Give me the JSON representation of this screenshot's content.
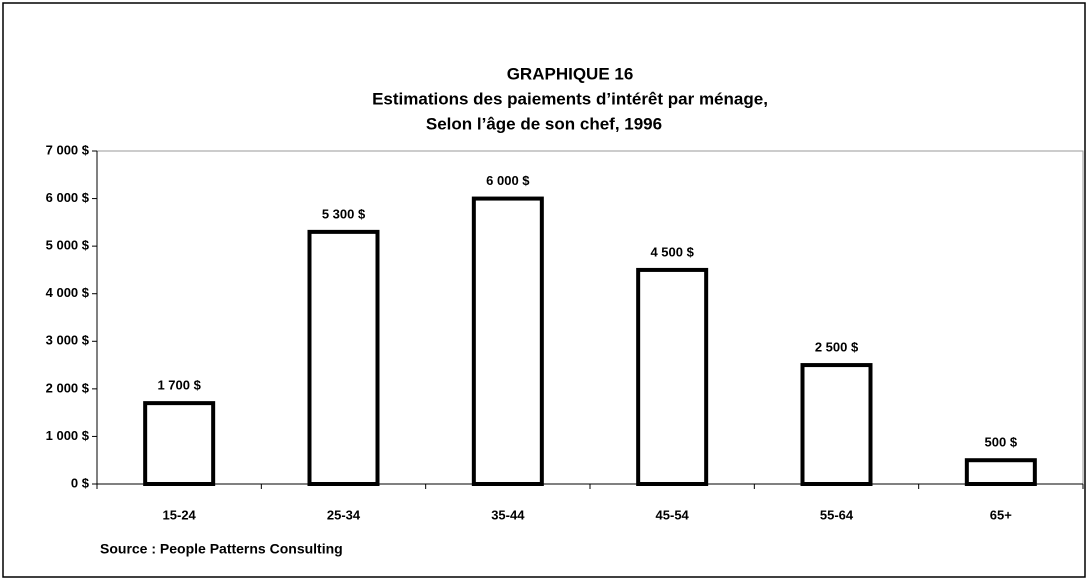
{
  "chart_data": {
    "type": "bar",
    "title": [
      "GRAPHIQUE 16",
      "Estimations des paiements d’intérêt par ménage,",
      "Selon l’âge de son chef, 1996"
    ],
    "categories": [
      "15-24",
      "25-34",
      "35-44",
      "45-54",
      "55-64",
      "65+"
    ],
    "values": [
      1700,
      5300,
      6000,
      4500,
      2500,
      500
    ],
    "value_labels": [
      "1 700 $",
      "5 300 $",
      "6 000 $",
      "4 500 $",
      "2 500 $",
      "500 $"
    ],
    "color": "#ffffff",
    "ylim": [
      0,
      7000
    ],
    "yticks": [
      {
        "value": 0,
        "label": "0 $"
      },
      {
        "value": 1000,
        "label": "1 000 $"
      },
      {
        "value": 2000,
        "label": "2 000 $"
      },
      {
        "value": 3000,
        "label": "3 000 $"
      },
      {
        "value": 4000,
        "label": "4 000 $"
      },
      {
        "value": 5000,
        "label": "5 000 $"
      },
      {
        "value": 6000,
        "label": "6 000 $"
      },
      {
        "value": 7000,
        "label": "7 000 $"
      }
    ],
    "grid": false,
    "source": "Source : People Patterns Consulting"
  }
}
